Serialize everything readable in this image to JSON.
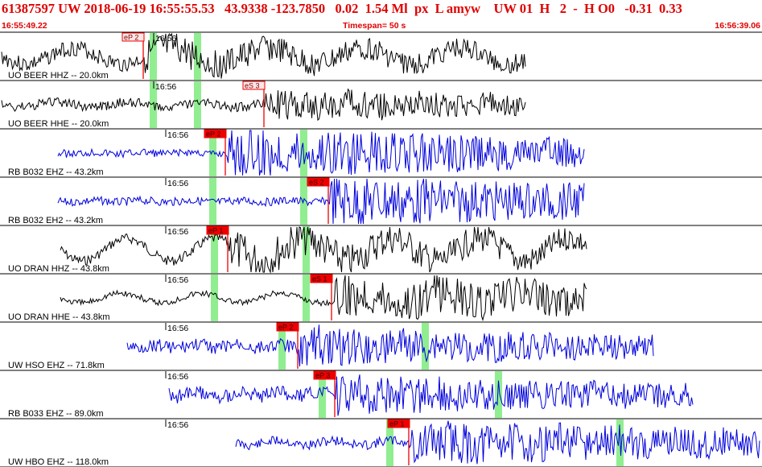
{
  "header": {
    "title": "61387597 UW 2018-06-19 16:55:55.53   43.9338 -123.7850   0.02  1.54 Ml  px  L amyw    UW 01  H   2  -  H O0   -0.31  0.33",
    "start_time": "16:55:49.22",
    "timespan": "Timespan=  50 s",
    "end_time": "16:56:39.06"
  },
  "colors": {
    "header_red": "#e00000",
    "pick_red": "#ee0000",
    "window_green": "#90ee90",
    "blue": "#0000dd",
    "black": "#000000"
  },
  "traces": [
    {
      "label": "UO BEER HHZ -- 20.0km",
      "minute_label": "16:56",
      "color": "black",
      "pick": {
        "text": "eP 2",
        "style": "outline"
      }
    },
    {
      "label": "UO BEER HHE -- 20.0km",
      "minute_label": "16:56",
      "color": "black",
      "pick": {
        "text": "eS 3",
        "style": "outline"
      }
    },
    {
      "label": "RB B032 EHZ -- 43.2km",
      "minute_label": "16:56",
      "color": "blue",
      "pick": {
        "text": "eP 2",
        "style": "filled"
      }
    },
    {
      "label": "RB B032 EH2 -- 43.2km",
      "minute_label": "16:56",
      "color": "blue",
      "pick": {
        "text": "eS 2",
        "style": "filled"
      }
    },
    {
      "label": "UO DRAN HHZ -- 43.8km",
      "minute_label": "16:56",
      "color": "black",
      "pick": {
        "text": "eP 1",
        "style": "filled"
      }
    },
    {
      "label": "UO DRAN HHE -- 43.8km",
      "minute_label": "16:56",
      "color": "black",
      "pick": {
        "text": "eS 1",
        "style": "filled"
      }
    },
    {
      "label": "UW HSO EHZ -- 71.8km",
      "minute_label": "16:56",
      "color": "blue",
      "pick": {
        "text": "eP 2",
        "style": "filled"
      }
    },
    {
      "label": "RB B033 EHZ -- 89.0km",
      "minute_label": "16:56",
      "color": "blue",
      "pick": {
        "text": "eP 3",
        "style": "filled"
      }
    },
    {
      "label": "UW HBO EHZ -- 118.0km",
      "minute_label": "16:56",
      "color": "blue",
      "pick": {
        "text": "eP 1",
        "style": "filled"
      }
    }
  ]
}
